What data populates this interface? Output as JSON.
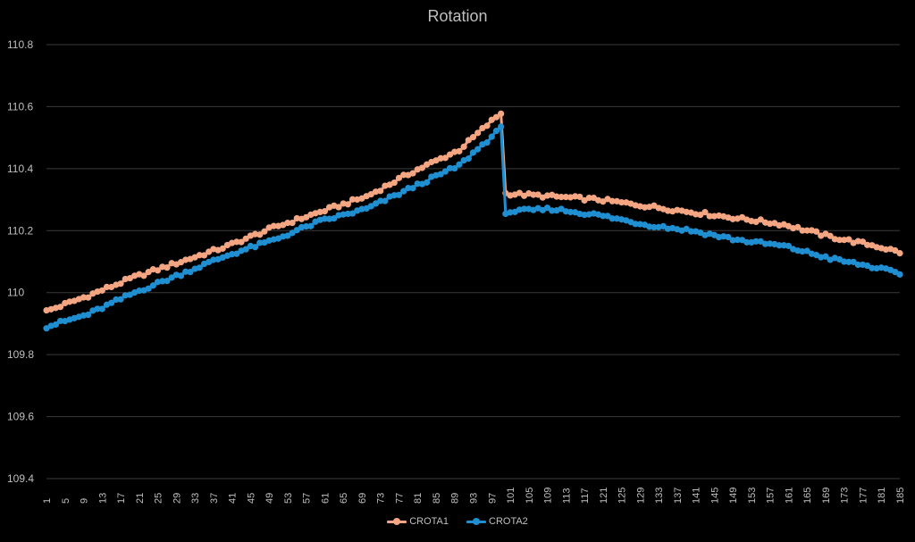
{
  "chart_data": {
    "type": "line",
    "title": "Rotation",
    "xlabel": "",
    "ylabel": "",
    "ylim": [
      109.4,
      110.8
    ],
    "yticks": [
      "110.8",
      "110.6",
      "110.4",
      "110.2",
      "110",
      "109.8",
      "109.6",
      "109.4"
    ],
    "x_count": 185,
    "x_tick_step": 4,
    "grid": true,
    "legend": "bottom",
    "segments": [
      {
        "from": 1,
        "to": 99
      },
      {
        "from": 100,
        "to": 185
      }
    ],
    "series": [
      {
        "name": "CROTA1",
        "color": "#f4a582",
        "anchors": [
          [
            1,
            109.94
          ],
          [
            10,
            109.99
          ],
          [
            20,
            110.05
          ],
          [
            30,
            110.1
          ],
          [
            40,
            110.15
          ],
          [
            50,
            110.21
          ],
          [
            60,
            110.26
          ],
          [
            70,
            110.31
          ],
          [
            80,
            110.39
          ],
          [
            90,
            110.46
          ],
          [
            99,
            110.58
          ],
          [
            100,
            110.32
          ],
          [
            110,
            110.31
          ],
          [
            120,
            110.3
          ],
          [
            130,
            110.28
          ],
          [
            140,
            110.26
          ],
          [
            150,
            110.24
          ],
          [
            160,
            110.22
          ],
          [
            170,
            110.18
          ],
          [
            180,
            110.15
          ],
          [
            185,
            110.13
          ]
        ]
      },
      {
        "name": "CROTA2",
        "color": "#1f8fd1",
        "anchors": [
          [
            1,
            109.89
          ],
          [
            10,
            109.93
          ],
          [
            20,
            110.0
          ],
          [
            30,
            110.06
          ],
          [
            40,
            110.12
          ],
          [
            50,
            110.17
          ],
          [
            60,
            110.23
          ],
          [
            70,
            110.27
          ],
          [
            80,
            110.34
          ],
          [
            90,
            110.41
          ],
          [
            99,
            110.53
          ],
          [
            100,
            110.26
          ],
          [
            110,
            110.27
          ],
          [
            120,
            110.25
          ],
          [
            130,
            110.22
          ],
          [
            140,
            110.2
          ],
          [
            150,
            110.17
          ],
          [
            160,
            110.15
          ],
          [
            170,
            110.11
          ],
          [
            180,
            110.08
          ],
          [
            185,
            110.06
          ]
        ]
      }
    ]
  }
}
